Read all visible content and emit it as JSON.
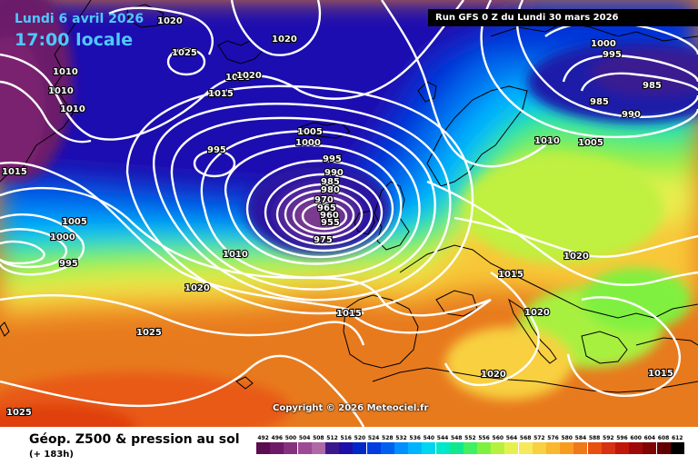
{
  "header": {
    "date": "Lundi 6 avril 2026",
    "local_time": "17:00 locale",
    "run_info": "Run GFS 0 Z du Lundi 30 mars 2026"
  },
  "copyright": "Copyright © 2026 Meteociel.fr",
  "footer": {
    "title": "Géop. Z500 & pression au sol",
    "subtitle": "(+ 183h)"
  },
  "legend": {
    "values": [
      "492",
      "496",
      "500",
      "504",
      "508",
      "512",
      "516",
      "520",
      "524",
      "528",
      "532",
      "536",
      "540",
      "544",
      "548",
      "552",
      "556",
      "560",
      "564",
      "568",
      "572",
      "576",
      "580",
      "584",
      "588",
      "592",
      "596",
      "600",
      "604",
      "608",
      "612"
    ],
    "colors": [
      "#5a0d50",
      "#6e1a66",
      "#86307e",
      "#9c4a94",
      "#b068a8",
      "#3a1a8a",
      "#1e0fa8",
      "#0028c8",
      "#003ce0",
      "#0060f0",
      "#0090ff",
      "#00b4ff",
      "#00d6f0",
      "#00e8c8",
      "#10e890",
      "#40f060",
      "#80f040",
      "#b8f040",
      "#e8f050",
      "#f8e860",
      "#f8d040",
      "#f8b830",
      "#f89c20",
      "#f07818",
      "#e85010",
      "#d83010",
      "#c01808",
      "#a00808",
      "#800404",
      "#600000",
      "#000000"
    ]
  },
  "isobars": [
    {
      "text": "1020",
      "role": "isobar"
    },
    {
      "text": "1025",
      "role": "isobar"
    },
    {
      "text": "1020",
      "role": "isobar"
    },
    {
      "text": "1010",
      "role": "isobar"
    },
    {
      "text": "1020",
      "role": "isobar"
    },
    {
      "text": "1010",
      "role": "isobar"
    },
    {
      "text": "1010",
      "role": "isobar"
    },
    {
      "text": "1015",
      "role": "isobar"
    },
    {
      "text": "1010",
      "role": "isobar"
    },
    {
      "text": "1015",
      "role": "isobar"
    },
    {
      "text": "995",
      "role": "isobar"
    },
    {
      "text": "1005",
      "role": "isobar"
    },
    {
      "text": "1000",
      "role": "isobar"
    },
    {
      "text": "995",
      "role": "isobar"
    },
    {
      "text": "990",
      "role": "isobar"
    },
    {
      "text": "985",
      "role": "isobar"
    },
    {
      "text": "980",
      "role": "isobar"
    },
    {
      "text": "970",
      "role": "isobar"
    },
    {
      "text": "965",
      "role": "isobar"
    },
    {
      "text": "960",
      "role": "isobar"
    },
    {
      "text": "955",
      "role": "isobar"
    },
    {
      "text": "975",
      "role": "isobar"
    },
    {
      "text": "1005",
      "role": "isobar"
    },
    {
      "text": "1000",
      "role": "isobar"
    },
    {
      "text": "995",
      "role": "isobar"
    },
    {
      "text": "1010",
      "role": "isobar"
    },
    {
      "text": "1020",
      "role": "isobar"
    },
    {
      "text": "1025",
      "role": "isobar"
    },
    {
      "text": "1025",
      "role": "isobar"
    },
    {
      "text": "1015",
      "role": "isobar"
    },
    {
      "text": "1015",
      "role": "isobar"
    },
    {
      "text": "1020",
      "role": "isobar"
    },
    {
      "text": "1020",
      "role": "isobar"
    },
    {
      "text": "1020",
      "role": "isobar"
    },
    {
      "text": "1015",
      "role": "isobar"
    },
    {
      "text": "1000",
      "role": "isobar"
    },
    {
      "text": "995",
      "role": "isobar"
    },
    {
      "text": "985",
      "role": "isobar"
    },
    {
      "text": "985",
      "role": "isobar"
    },
    {
      "text": "990",
      "role": "isobar"
    },
    {
      "text": "1010",
      "role": "isobar"
    },
    {
      "text": "1005",
      "role": "isobar"
    }
  ]
}
